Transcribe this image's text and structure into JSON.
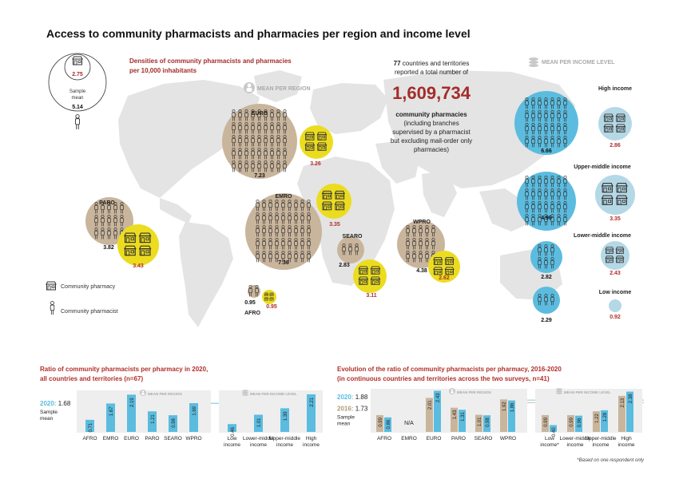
{
  "title": "Access to community pharmacists and pharmacies per region and income level",
  "densities_title_line1": "Densities of community pharmacists and pharmacies",
  "densities_title_line2": "per 10,000 inhabitants",
  "mean_per_region": "MEAN PER REGION",
  "mean_per_income": "MEAN PER INCOME LEVEL",
  "sample": {
    "label_line1": "Sample",
    "label_line2": "mean",
    "pharmacy_value": "2.75",
    "pharmacist_value": "5.14"
  },
  "totals": {
    "count": "77",
    "line1_rest": " countries and territories",
    "line2": "reported a total number of",
    "big_number": "1,609,734",
    "line3": "community pharmacies",
    "line4": "(including branches",
    "line5": "supervised by a pharmacist",
    "line6": "but excluding mail-order only",
    "line7": "pharmacies)"
  },
  "legend": {
    "pharmacy": "Community pharmacy",
    "pharmacist": "Community pharmacist"
  },
  "colors": {
    "tan": "#c9b59c",
    "yellow": "#ecdc1f",
    "blue": "#5bbcdf",
    "light_blue": "#b4d8e6",
    "red": "#b0302a",
    "grey": "#b8b8b8"
  },
  "regions": [
    {
      "name": "EURO",
      "pharmacists": "7.23",
      "pharmacies": "3.26"
    },
    {
      "name": "EMRO",
      "pharmacists": "7.36",
      "pharmacies": "3.35"
    },
    {
      "name": "PARO",
      "pharmacists": "3.82",
      "pharmacies": "3.43"
    },
    {
      "name": "SEARO",
      "pharmacists": "2.83",
      "pharmacies": "3.11"
    },
    {
      "name": "WPRO",
      "pharmacists": "4.38",
      "pharmacies": "2.62"
    },
    {
      "name": "AFRO",
      "pharmacists": "0.95",
      "pharmacies": "0.95"
    }
  ],
  "income": [
    {
      "name": "High income",
      "pharmacists": "6.66",
      "pharmacies": "2.86"
    },
    {
      "name": "Upper-middle income",
      "pharmacists": "4.96",
      "pharmacies": "3.35"
    },
    {
      "name": "Lower-middle income",
      "pharmacists": "2.82",
      "pharmacies": "2.43"
    },
    {
      "name": "Low income",
      "pharmacists": "2.29",
      "pharmacies": "0.92"
    }
  ],
  "footnote": "*Based on one respondent only",
  "chart_data": [
    {
      "type": "bar",
      "title": "Ratio of community pharmacists per pharmacy in 2020,",
      "subtitle": "all countries and territories (n=67)",
      "sample_year": "2020:",
      "sample_value": "1.68",
      "sample_label_1": "Sample",
      "sample_label_2": "mean",
      "group_labels": [
        "MEAN PER REGION",
        "MEAN PER INCOME LEVEL"
      ],
      "categories": [
        "AFRO",
        "EMRO",
        "EURO",
        "PARO",
        "SEARO",
        "WPRO",
        "Low income",
        "Lower-middle income",
        "Upper-middle income",
        "High income"
      ],
      "values": [
        0.71,
        1.67,
        2.19,
        1.21,
        0.98,
        1.69,
        0.46,
        1.01,
        1.39,
        2.21
      ],
      "reference_line": 1.68
    },
    {
      "type": "bar",
      "title": "Evolution of the ratio of community pharmacists per pharmacy, 2016-2020",
      "subtitle": "(in continuous countries and territories across the two surveys, n=41)",
      "sample_year_2020": "2020:",
      "sample_value_2020": "1.88",
      "sample_year_2016": "2016:",
      "sample_value_2016": "1.73",
      "sample_label_1": "Sample",
      "sample_label_2": "mean",
      "group_labels": [
        "MEAN PER REGION",
        "MEAN PER INCOME LEVEL"
      ],
      "categories": [
        "AFRO",
        "EMRO",
        "EURO",
        "PARO",
        "SEARO",
        "WPRO",
        "Low income*",
        "Lower-middle income",
        "Upper-middle income",
        "High income"
      ],
      "series": [
        {
          "name": "2016",
          "values": [
            0.99,
            null,
            2.01,
            1.43,
            1.01,
            1.92,
            0.99,
            0.99,
            1.22,
            2.13
          ]
        },
        {
          "name": "2020",
          "values": [
            0.86,
            null,
            2.43,
            1.31,
            0.98,
            1.86,
            0.4,
            0.96,
            1.28,
            2.38
          ]
        }
      ],
      "na_label": "N/A",
      "reference_lines": [
        1.88,
        1.73
      ]
    }
  ]
}
